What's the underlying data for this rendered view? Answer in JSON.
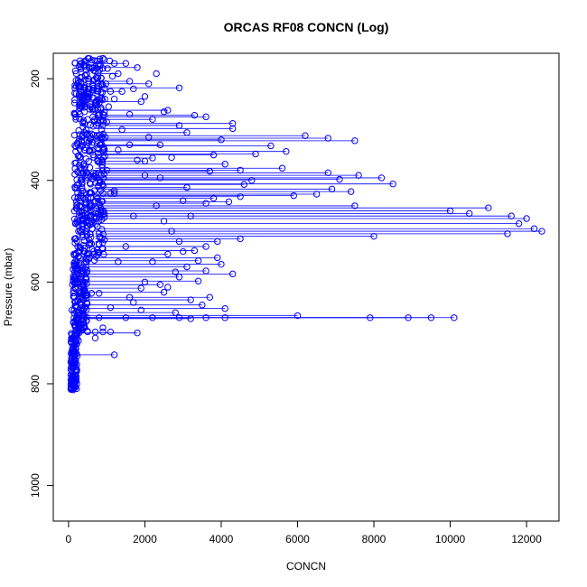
{
  "chart_data": {
    "type": "scatter",
    "title": "ORCAS RF08 CONCN (Log)",
    "xlabel": "CONCN",
    "ylabel": "Pressure (mbar)",
    "xlim": [
      -400,
      12850
    ],
    "ylim": [
      1070,
      150
    ],
    "y_reversed": true,
    "grid": false,
    "legend": "none",
    "marker_color": "#0000ff",
    "line_color": "#0000ff",
    "xticks": [
      0,
      2000,
      4000,
      6000,
      8000,
      10000,
      12000
    ],
    "xtick_labels": [
      "0",
      "2000",
      "4000",
      "6000",
      "8000",
      "10000",
      "12000"
    ],
    "yticks": [
      200,
      400,
      600,
      800,
      1000
    ],
    "ytick_labels": [
      "200",
      "400",
      "600",
      "800",
      "1000"
    ],
    "series": [
      {
        "style": "points-and-lines",
        "points": [
          [
            900,
            160
          ],
          [
            1500,
            170
          ],
          [
            1800,
            178
          ],
          [
            1300,
            190
          ],
          [
            1600,
            205
          ],
          [
            2100,
            210
          ],
          [
            2900,
            218
          ],
          [
            1400,
            225
          ],
          [
            1900,
            245
          ],
          [
            2600,
            262
          ],
          [
            3300,
            272
          ],
          [
            2200,
            280
          ],
          [
            3600,
            275
          ],
          [
            4300,
            288
          ],
          [
            2900,
            292
          ],
          [
            4300,
            298
          ],
          [
            3100,
            306
          ],
          [
            6200,
            312
          ],
          [
            6800,
            317
          ],
          [
            7500,
            322
          ],
          [
            4000,
            320
          ],
          [
            2400,
            330
          ],
          [
            5300,
            332
          ],
          [
            5700,
            343
          ],
          [
            4900,
            348
          ],
          [
            3800,
            350
          ],
          [
            2200,
            356
          ],
          [
            2000,
            362
          ],
          [
            4100,
            368
          ],
          [
            5600,
            376
          ],
          [
            4500,
            380
          ],
          [
            3700,
            382
          ],
          [
            6800,
            385
          ],
          [
            7600,
            390
          ],
          [
            8200,
            395
          ],
          [
            7100,
            398
          ],
          [
            4800,
            400
          ],
          [
            8500,
            407
          ],
          [
            4600,
            408
          ],
          [
            3100,
            414
          ],
          [
            6900,
            417
          ],
          [
            7400,
            422
          ],
          [
            6500,
            427
          ],
          [
            5900,
            430
          ],
          [
            4500,
            432
          ],
          [
            3800,
            435
          ],
          [
            4200,
            442
          ],
          [
            3600,
            445
          ],
          [
            7500,
            450
          ],
          [
            11000,
            454
          ],
          [
            10000,
            460
          ],
          [
            10500,
            465
          ],
          [
            11600,
            470
          ],
          [
            12000,
            475
          ],
          [
            11800,
            485
          ],
          [
            12200,
            495
          ],
          [
            12400,
            500
          ],
          [
            11500,
            505
          ],
          [
            8000,
            510
          ],
          [
            4500,
            515
          ],
          [
            3900,
            520
          ],
          [
            3600,
            530
          ],
          [
            3300,
            538
          ],
          [
            2600,
            545
          ],
          [
            3900,
            552
          ],
          [
            3400,
            558
          ],
          [
            4000,
            565
          ],
          [
            3100,
            570
          ],
          [
            3600,
            578
          ],
          [
            4300,
            584
          ],
          [
            2900,
            590
          ],
          [
            3400,
            598
          ],
          [
            2400,
            605
          ],
          [
            1900,
            612
          ],
          [
            2500,
            620
          ],
          [
            3700,
            630
          ],
          [
            3200,
            635
          ],
          [
            3500,
            645
          ],
          [
            4100,
            652
          ],
          [
            2800,
            660
          ],
          [
            6000,
            666
          ],
          [
            7900,
            670
          ],
          [
            8900,
            670
          ],
          [
            9500,
            670
          ],
          [
            10100,
            670
          ],
          [
            3200,
            672
          ],
          [
            1800,
            700
          ],
          [
            1200,
            743
          ]
        ]
      },
      {
        "style": "points-only",
        "points": [
          [
            400,
            425
          ],
          [
            600,
            425
          ],
          [
            900,
            425
          ],
          [
            1100,
            425
          ],
          [
            1200,
            425
          ],
          [
            300,
            622
          ],
          [
            600,
            622
          ],
          [
            800,
            622
          ],
          [
            250,
            698
          ],
          [
            500,
            698
          ],
          [
            700,
            698
          ],
          [
            900,
            698
          ],
          [
            1100,
            698
          ],
          [
            250,
            670
          ],
          [
            800,
            670
          ],
          [
            1500,
            670
          ],
          [
            2200,
            670
          ],
          [
            2900,
            670
          ],
          [
            3600,
            670
          ],
          [
            4100,
            670
          ],
          [
            60,
            810
          ],
          [
            120,
            812
          ],
          [
            180,
            806
          ],
          [
            100,
            800
          ],
          [
            140,
            790
          ],
          [
            200,
            775
          ],
          [
            150,
            760
          ],
          [
            230,
            745
          ],
          [
            180,
            730
          ],
          [
            260,
            715
          ],
          [
            220,
            705
          ],
          [
            260,
            690
          ],
          [
            320,
            675
          ],
          [
            280,
            660
          ],
          [
            350,
            645
          ],
          [
            300,
            630
          ],
          [
            380,
            615
          ],
          [
            420,
            600
          ],
          [
            350,
            585
          ],
          [
            460,
            570
          ],
          [
            520,
            555
          ],
          [
            400,
            540
          ],
          [
            560,
            525
          ],
          [
            480,
            510
          ],
          [
            620,
            495
          ],
          [
            540,
            480
          ],
          [
            700,
            465
          ],
          [
            600,
            450
          ],
          [
            760,
            435
          ],
          [
            680,
            420
          ],
          [
            820,
            405
          ],
          [
            720,
            390
          ],
          [
            880,
            375
          ],
          [
            760,
            360
          ],
          [
            920,
            345
          ],
          [
            820,
            330
          ],
          [
            960,
            315
          ],
          [
            860,
            300
          ],
          [
            1000,
            285
          ],
          [
            900,
            270
          ],
          [
            1050,
            255
          ],
          [
            950,
            240
          ],
          [
            1100,
            225
          ],
          [
            980,
            210
          ],
          [
            1150,
            195
          ],
          [
            1020,
            180
          ],
          [
            1200,
            170
          ],
          [
            1080,
            165
          ],
          [
            600,
            168
          ],
          [
            700,
            185
          ],
          [
            520,
            200
          ],
          [
            640,
            215
          ],
          [
            480,
            230
          ],
          [
            560,
            250
          ],
          [
            420,
            265
          ],
          [
            500,
            280
          ],
          [
            380,
            295
          ],
          [
            460,
            310
          ],
          [
            340,
            325
          ],
          [
            420,
            340
          ],
          [
            300,
            355
          ],
          [
            380,
            370
          ],
          [
            260,
            385
          ],
          [
            340,
            400
          ],
          [
            220,
            415
          ],
          [
            300,
            440
          ],
          [
            200,
            455
          ],
          [
            280,
            470
          ],
          [
            180,
            485
          ],
          [
            260,
            500
          ],
          [
            160,
            515
          ],
          [
            240,
            530
          ],
          [
            140,
            545
          ],
          [
            220,
            560
          ],
          [
            120,
            575
          ],
          [
            200,
            590
          ],
          [
            100,
            605
          ],
          [
            180,
            640
          ],
          [
            90,
            655
          ],
          [
            160,
            685
          ],
          [
            80,
            720
          ],
          [
            140,
            735
          ],
          [
            70,
            755
          ],
          [
            110,
            770
          ],
          [
            90,
            785
          ],
          [
            130,
            795
          ],
          [
            1400,
            300
          ],
          [
            1600,
            330
          ],
          [
            1800,
            360
          ],
          [
            2000,
            390
          ],
          [
            2300,
            450
          ],
          [
            2500,
            480
          ],
          [
            2700,
            500
          ],
          [
            3000,
            540
          ],
          [
            2800,
            580
          ],
          [
            2600,
            610
          ],
          [
            1700,
            640
          ],
          [
            1900,
            655
          ],
          [
            1300,
            560
          ],
          [
            1500,
            530
          ],
          [
            1700,
            470
          ],
          [
            1200,
            420
          ],
          [
            1000,
            380
          ],
          [
            1300,
            340
          ],
          [
            1600,
            270
          ],
          [
            1200,
            240
          ],
          [
            1700,
            220
          ],
          [
            2300,
            190
          ],
          [
            2000,
            235
          ],
          [
            2500,
            265
          ],
          [
            2100,
            315
          ],
          [
            2700,
            355
          ],
          [
            2400,
            395
          ],
          [
            3000,
            440
          ],
          [
            3200,
            470
          ],
          [
            2900,
            520
          ],
          [
            2200,
            560
          ],
          [
            2000,
            600
          ],
          [
            1600,
            630
          ],
          [
            1100,
            650
          ],
          [
            900,
            690
          ],
          [
            700,
            710
          ]
        ]
      }
    ]
  }
}
